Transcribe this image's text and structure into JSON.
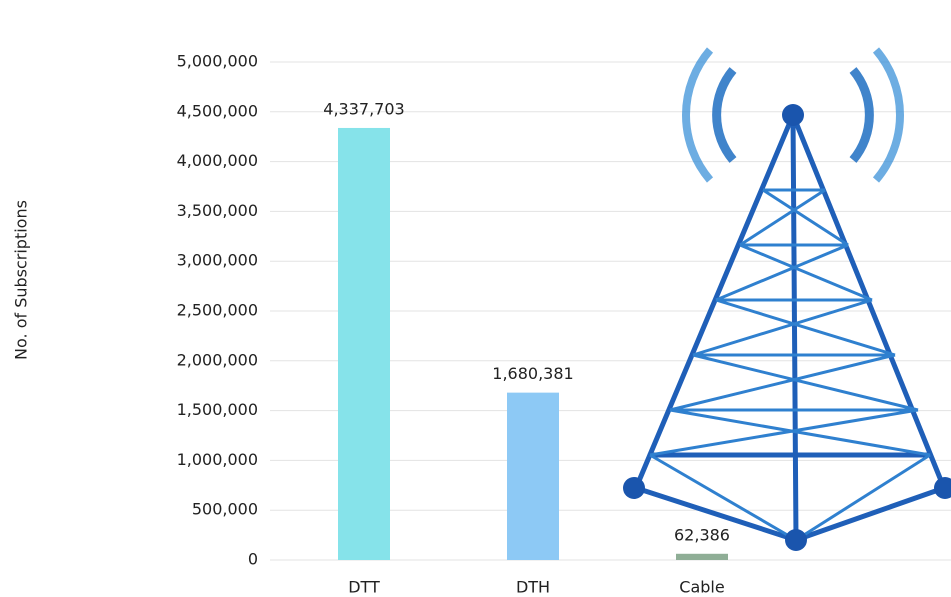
{
  "chart_data": {
    "type": "bar",
    "y_label": "No. of Subscriptions",
    "categories": [
      "DTT",
      "DTH",
      "Cable"
    ],
    "values": [
      4337703,
      1680381,
      62386
    ],
    "value_labels": [
      "4,337,703",
      "1,680,381",
      "62,386"
    ],
    "colors": [
      "#86e3ea",
      "#8dc9f5",
      "#8fae96"
    ],
    "ylim": [
      0,
      5000000
    ],
    "yticks": [
      0,
      {
        "value": 500000,
        "label": "500,000"
      },
      {
        "value": 1000000,
        "label": "1,000,000"
      },
      {
        "value": 1500000,
        "label": "1,500,000"
      },
      {
        "value": 2000000,
        "label": "2,000,000"
      },
      {
        "value": 2500000,
        "label": "2,500,000"
      },
      {
        "value": 3000000,
        "label": "3,000,000"
      },
      {
        "value": 3500000,
        "label": "3,500,000"
      },
      {
        "value": 4000000,
        "label": "4,000,000"
      },
      {
        "value": 4500000,
        "label": "4,500,000"
      },
      {
        "value": 5000000,
        "label": "5,000,000"
      }
    ],
    "grid": true
  }
}
